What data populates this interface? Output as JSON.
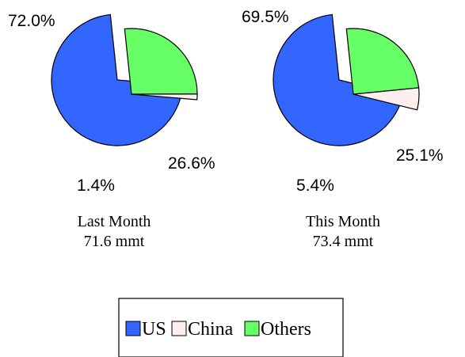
{
  "chart_data": {
    "type": "pie",
    "categories": [
      "US",
      "China",
      "Others"
    ],
    "colors": {
      "US": "#3366ff",
      "China": "#ffeeee",
      "Others": "#66ff66"
    },
    "legend": {
      "placement": "bottom",
      "entries": [
        "US",
        "China",
        "Others"
      ]
    },
    "charts": [
      {
        "caption_line1": "Last Month",
        "caption_line2": "71.6 mmt",
        "values": [
          72.0,
          1.4,
          26.6
        ],
        "labels": [
          "72.0%",
          "1.4%",
          "26.6%"
        ]
      },
      {
        "caption_line1": "This Month",
        "caption_line2": "73.4 mmt",
        "values": [
          69.5,
          5.4,
          25.1
        ],
        "labels": [
          "69.5%",
          "5.4%",
          "25.1%"
        ]
      }
    ]
  }
}
